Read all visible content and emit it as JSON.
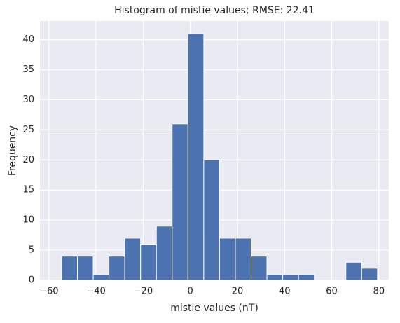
{
  "chart_data": {
    "type": "histogram",
    "title": "Histogram of mistie values; RMSE: 22.41",
    "x_label": "mistie values (nT)",
    "y_label": "Frequency",
    "bins": [
      -54.6,
      -47.9,
      -41.2,
      -34.5,
      -27.8,
      -21.1,
      -14.4,
      -7.7,
      -1.0,
      5.7,
      12.4,
      19.1,
      25.8,
      32.5,
      39.2,
      45.9,
      52.6,
      59.3,
      66.0,
      72.7,
      79.4
    ],
    "values": [
      4,
      4,
      1,
      4,
      7,
      6,
      9,
      26,
      41,
      20,
      7,
      7,
      4,
      1,
      1,
      1,
      0,
      0,
      3,
      2
    ],
    "color": "#4c72b0",
    "xlim": [
      -63.8,
      84.2
    ],
    "xticks": [
      {
        "value": -60,
        "label": "−60"
      },
      {
        "value": -40,
        "label": "−40"
      },
      {
        "value": -20,
        "label": "−20"
      },
      0,
      20,
      40,
      60,
      80
    ],
    "ylim": [
      0,
      43.1
    ],
    "yticks": [
      0,
      5,
      10,
      15,
      20,
      25,
      30,
      35,
      40
    ],
    "grid": true
  }
}
